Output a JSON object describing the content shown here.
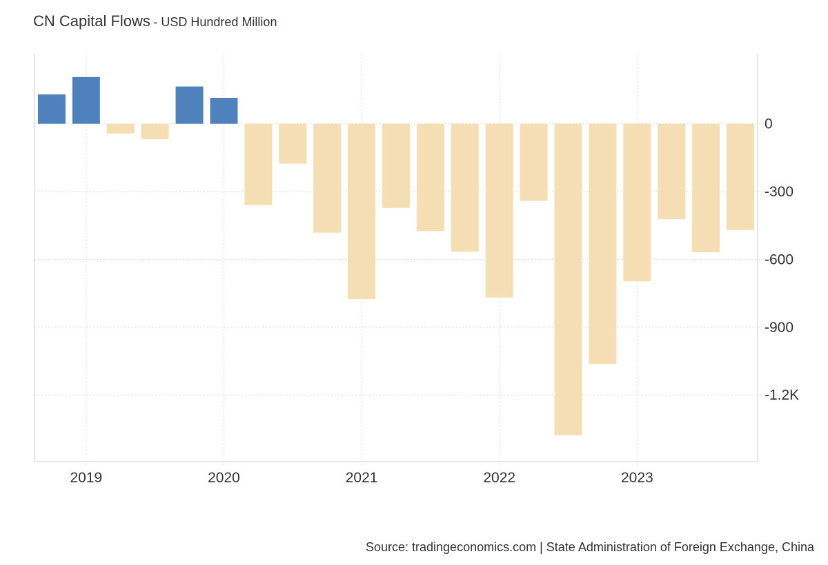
{
  "header": {
    "title": "CN Capital Flows",
    "subtitle": "- USD Hundred Million"
  },
  "footer": {
    "source": "Source: tradingeconomics.com | State Administration of Foreign Exchange, China"
  },
  "chart_data": {
    "type": "bar",
    "title": "CN Capital Flows",
    "subtitle": "USD Hundred Million",
    "categories": [
      "2018-12",
      "2019-03",
      "2019-06",
      "2019-09",
      "2019-12",
      "2020-03",
      "2020-06",
      "2020-09",
      "2020-12",
      "2021-03",
      "2021-06",
      "2021-09",
      "2021-12",
      "2022-03",
      "2022-06",
      "2022-09",
      "2022-12",
      "2023-03",
      "2023-06",
      "2023-09",
      "2023-12"
    ],
    "values": [
      130,
      207,
      -43,
      -68,
      165,
      115,
      -360,
      -176,
      -482,
      -775,
      -372,
      -475,
      -566,
      -769,
      -341,
      -1378,
      -1062,
      -697,
      -422,
      -568,
      -470
    ],
    "x_tick_labels": [
      "2019",
      "2020",
      "2021",
      "2022",
      "2023"
    ],
    "y_ticks": [
      0,
      -300,
      -600,
      -900,
      -1200
    ],
    "y_tick_labels": [
      "0",
      "-300",
      "-600",
      "-900",
      "-1.2K"
    ],
    "ylim": [
      -1495,
      310
    ],
    "y_axis_position": "right",
    "grid": true,
    "xlabel": "",
    "ylabel": "",
    "colors": {
      "positive": "#4f81bd",
      "negative": "#f5deb3",
      "grid": "#d9d9d9",
      "axis": "#cccccc",
      "tick_text": "#333333"
    }
  }
}
